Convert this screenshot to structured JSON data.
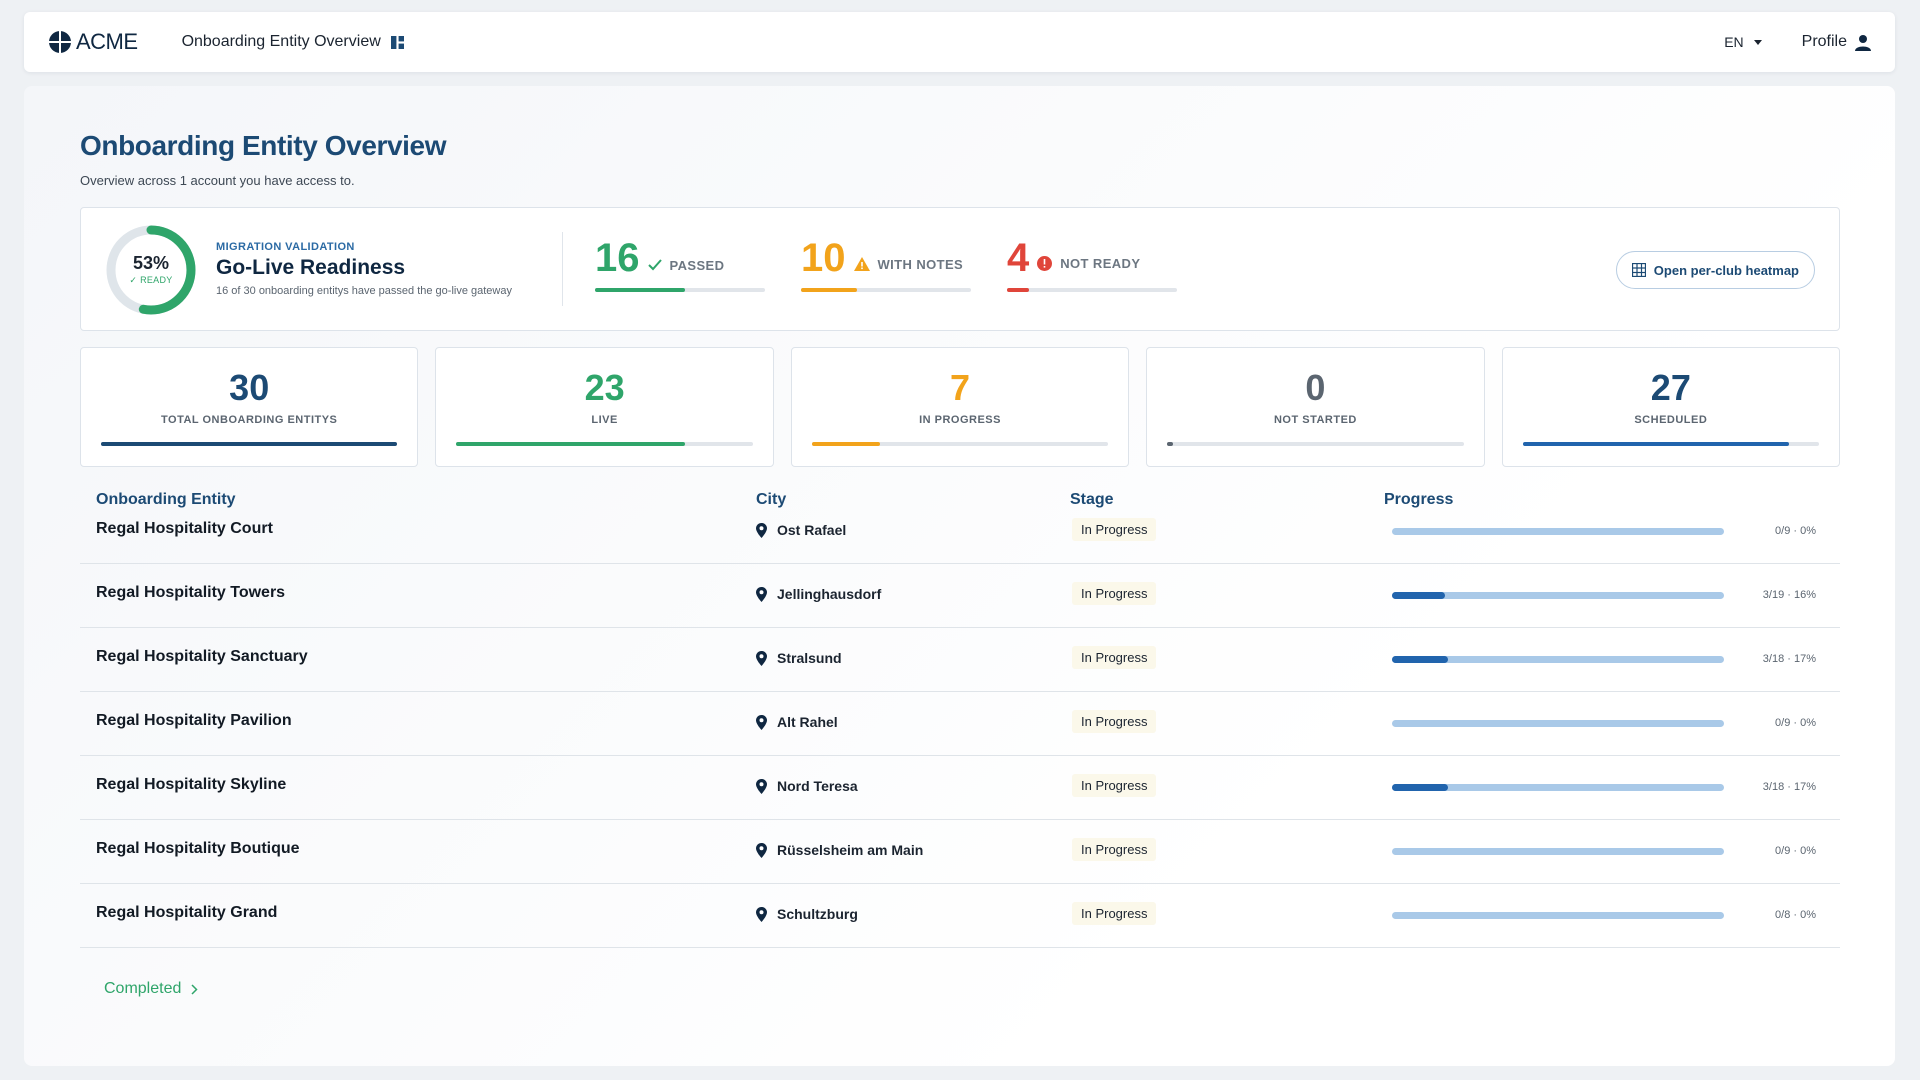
{
  "header": {
    "logo_text": "ACME",
    "nav_title": "Onboarding Entity Overview",
    "language": "EN",
    "profile_label": "Profile"
  },
  "page": {
    "title": "Onboarding Entity Overview",
    "subtitle": "Overview across 1 account you have access to."
  },
  "readiness": {
    "percent_label": "53%",
    "percent_value": 53,
    "ready_label": "READY",
    "kicker": "MIGRATION VALIDATION",
    "title": "Go-Live Readiness",
    "description": "16 of 30 onboarding entitys have passed the go-live gateway",
    "gauges": [
      {
        "value": "16",
        "label": "PASSED",
        "color": "#2fa56a",
        "fraction": 0.53,
        "icon": "check-icon"
      },
      {
        "value": "10",
        "label": "WITH NOTES",
        "color": "#f2a31b",
        "fraction": 0.33,
        "icon": "warning-icon"
      },
      {
        "value": "4",
        "label": "NOT READY",
        "color": "#e0453a",
        "fraction": 0.13,
        "icon": "alert-circle-icon"
      }
    ],
    "heatmap_button": "Open per-club heatmap"
  },
  "stats": [
    {
      "value": "30",
      "label": "TOTAL ONBOARDING ENTITYS",
      "color": "#1c4a74",
      "fraction": 1.0
    },
    {
      "value": "23",
      "label": "LIVE",
      "color": "#2fa56a",
      "fraction": 0.77
    },
    {
      "value": "7",
      "label": "IN PROGRESS",
      "color": "#f2a31b",
      "fraction": 0.23
    },
    {
      "value": "0",
      "label": "NOT STARTED",
      "color": "#5b6570",
      "fraction": 0.0
    },
    {
      "value": "27",
      "label": "SCHEDULED",
      "color": "#2164ad",
      "fraction": 0.9
    }
  ],
  "table": {
    "headers": {
      "entity": "Onboarding Entity",
      "city": "City",
      "stage": "Stage",
      "progress": "Progress"
    },
    "rows": [
      {
        "name": "Regal Hospitality Court",
        "city": "Ost Rafael",
        "stage": "In Progress",
        "progress": "0/9 · 0%",
        "fraction": 0
      },
      {
        "name": "Regal Hospitality Towers",
        "city": "Jellinghausdorf",
        "stage": "In Progress",
        "progress": "3/19 · 16%",
        "fraction": 0.16
      },
      {
        "name": "Regal Hospitality Sanctuary",
        "city": "Stralsund",
        "stage": "In Progress",
        "progress": "3/18 · 17%",
        "fraction": 0.17
      },
      {
        "name": "Regal Hospitality Pavilion",
        "city": "Alt Rahel",
        "stage": "In Progress",
        "progress": "0/9 · 0%",
        "fraction": 0
      },
      {
        "name": "Regal Hospitality Skyline",
        "city": "Nord Teresa",
        "stage": "In Progress",
        "progress": "3/18 · 17%",
        "fraction": 0.17
      },
      {
        "name": "Regal Hospitality Boutique",
        "city": "Rüsselsheim am Main",
        "stage": "In Progress",
        "progress": "0/9 · 0%",
        "fraction": 0
      },
      {
        "name": "Regal Hospitality Grand",
        "city": "Schultzburg",
        "stage": "In Progress",
        "progress": "0/8 · 0%",
        "fraction": 0
      }
    ]
  },
  "completed_link": "Completed"
}
